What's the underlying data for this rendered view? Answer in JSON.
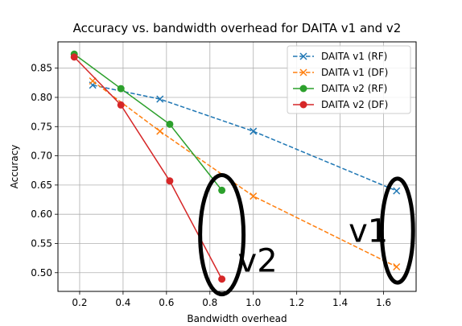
{
  "chart_data": {
    "type": "line",
    "title": "Accuracy vs. bandwidth overhead for DAITA v1 and v2",
    "xlabel": "Bandwidth overhead",
    "ylabel": "Accuracy",
    "xlim": [
      0.1,
      1.75
    ],
    "ylim": [
      0.468,
      0.895
    ],
    "xticks": [
      "0.2",
      "0.4",
      "0.6",
      "0.8",
      "1.0",
      "1.2",
      "1.4",
      "1.6"
    ],
    "yticks": [
      "0.50",
      "0.55",
      "0.60",
      "0.65",
      "0.70",
      "0.75",
      "0.80",
      "0.85"
    ],
    "grid": true,
    "legend_position": "top-right",
    "series": [
      {
        "name": "DAITA v1 (RF)",
        "color": "#1f77b4",
        "line": "dashed",
        "marker": "x",
        "x": [
          0.26,
          0.57,
          1.0,
          1.66
        ],
        "y": [
          0.821,
          0.797,
          0.742,
          0.64
        ]
      },
      {
        "name": "DAITA v1 (DF)",
        "color": "#ff7f0e",
        "line": "dashed",
        "marker": "x",
        "x": [
          0.26,
          0.57,
          1.0,
          1.66
        ],
        "y": [
          0.828,
          0.742,
          0.631,
          0.51
        ]
      },
      {
        "name": "DAITA v2 (RF)",
        "color": "#2ca02c",
        "line": "solid",
        "marker": "o",
        "x": [
          0.175,
          0.39,
          0.615,
          0.855
        ],
        "y": [
          0.874,
          0.815,
          0.754,
          0.641
        ]
      },
      {
        "name": "DAITA v2 (DF)",
        "color": "#d62728",
        "line": "solid",
        "marker": "o",
        "x": [
          0.175,
          0.39,
          0.615,
          0.855
        ],
        "y": [
          0.869,
          0.787,
          0.657,
          0.489
        ]
      }
    ],
    "annotations": [
      {
        "text": "v1",
        "x": 1.53,
        "y": 0.572
      },
      {
        "text": "v2",
        "x": 1.02,
        "y": 0.521
      }
    ],
    "highlight_ellipses": [
      {
        "cx": 0.855,
        "cy": 0.565,
        "rx": 0.1,
        "ry": 0.102
      },
      {
        "cx": 1.664,
        "cy": 0.572,
        "rx": 0.072,
        "ry": 0.089
      }
    ]
  }
}
